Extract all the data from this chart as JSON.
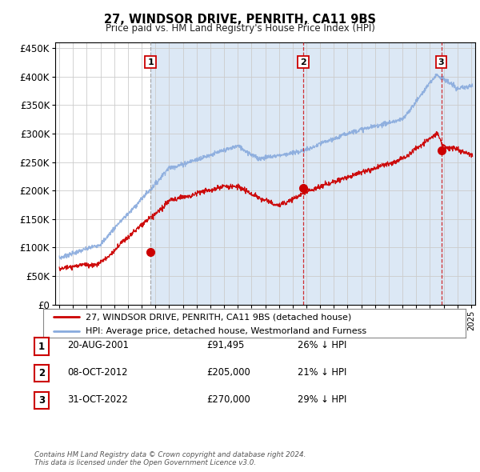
{
  "title": "27, WINDSOR DRIVE, PENRITH, CA11 9BS",
  "subtitle": "Price paid vs. HM Land Registry's House Price Index (HPI)",
  "background_color": "#ffffff",
  "plot_bg_color": "#dce8f5",
  "plot_bg_color2": "#ffffff",
  "legend_line1": "27, WINDSOR DRIVE, PENRITH, CA11 9BS (detached house)",
  "legend_line2": "HPI: Average price, detached house, Westmorland and Furness",
  "sale_color": "#cc0000",
  "hpi_color": "#88aadd",
  "table_rows": [
    {
      "num": "1",
      "date": "20-AUG-2001",
      "price": "£91,495",
      "hpi": "26% ↓ HPI"
    },
    {
      "num": "2",
      "date": "08-OCT-2012",
      "price": "£205,000",
      "hpi": "21% ↓ HPI"
    },
    {
      "num": "3",
      "date": "31-OCT-2022",
      "price": "£270,000",
      "hpi": "29% ↓ HPI"
    }
  ],
  "footer": "Contains HM Land Registry data © Crown copyright and database right 2024.\nThis data is licensed under the Open Government Licence v3.0.",
  "ylim": [
    0,
    460000
  ],
  "yticks": [
    0,
    50000,
    100000,
    150000,
    200000,
    250000,
    300000,
    350000,
    400000,
    450000
  ],
  "sale_dates": [
    2001.64,
    2012.77,
    2022.83
  ],
  "sale_prices": [
    91495,
    205000,
    270000
  ],
  "xlim_start": 1994.7,
  "xlim_end": 2025.3,
  "hpi_start_year": 1995.0,
  "hpi_end_year": 2025.1,
  "n_points": 1500
}
